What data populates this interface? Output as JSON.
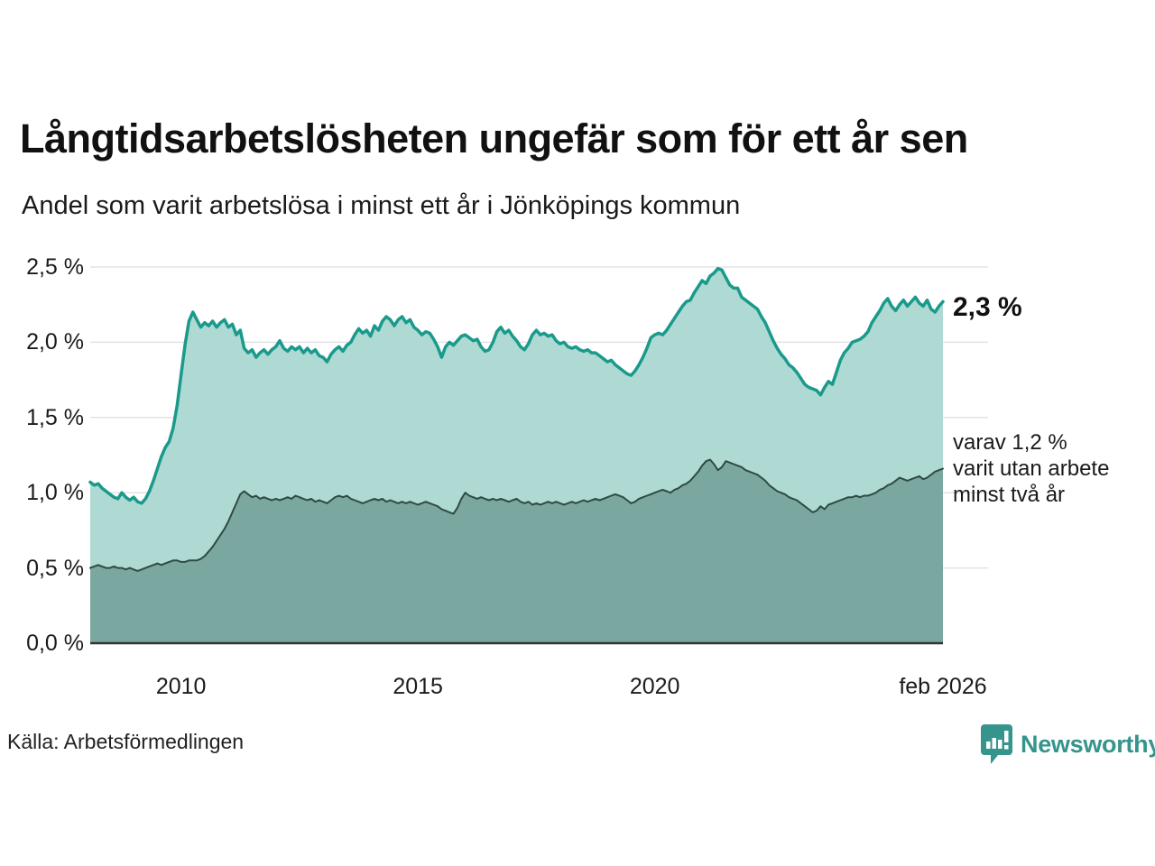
{
  "header": {
    "title": "Långtidsarbetslösheten ungefär som för ett år sen",
    "subtitle": "Andel som varit arbetslösa i minst ett år i Jönköpings kommun"
  },
  "annotations": {
    "latest_value": "2,3 %",
    "secondary_line1": "varav 1,2 %",
    "secondary_line2": "varit utan arbete",
    "secondary_line3": "minst två år"
  },
  "footer": {
    "source": "Källa: Arbetsförmedlingen",
    "brand": "Newsworthy"
  },
  "colors": {
    "accent_teal": "#1a9a8c",
    "light_fill": "#aedad3",
    "dark_fill": "#7aa8a1",
    "dark_line": "#2f4a44",
    "gridline": "#e3e3e7",
    "baseline": "#333333",
    "brand_teal": "#35948b",
    "text": "#111111"
  },
  "chart_data": {
    "type": "area",
    "title": "Långtidsarbetslösheten ungefär som för ett år sen",
    "subtitle": "Andel som varit arbetslösa i minst ett år i Jönköpings kommun",
    "unit": "%",
    "x_start": "2008-02",
    "x_end": "2026-02",
    "x_interval": "monthly",
    "ylim": [
      0,
      2.5
    ],
    "grid": true,
    "legend_position": "none",
    "yticks": [
      {
        "value": 0.0,
        "label": "0,0 %"
      },
      {
        "value": 0.5,
        "label": "0,5 %"
      },
      {
        "value": 1.0,
        "label": "1,0 %"
      },
      {
        "value": 1.5,
        "label": "1,5 %"
      },
      {
        "value": 2.0,
        "label": "2,0 %"
      },
      {
        "value": 2.5,
        "label": "2,5 %"
      }
    ],
    "xticks": [
      {
        "index": 23,
        "label": "2010"
      },
      {
        "index": 83,
        "label": "2015"
      },
      {
        "index": 143,
        "label": "2020"
      },
      {
        "index": 216,
        "label": "feb 2026"
      }
    ],
    "series": [
      {
        "name": "Andel arbetslösa minst ett år",
        "latest_value": 2.3,
        "line_color": "#1a9a8c",
        "fill_color": "#aedad3",
        "line_width": 3.5,
        "values": [
          1.07,
          1.05,
          1.06,
          1.03,
          1.01,
          0.99,
          0.97,
          0.96,
          1.0,
          0.97,
          0.95,
          0.97,
          0.94,
          0.93,
          0.96,
          1.01,
          1.08,
          1.16,
          1.24,
          1.3,
          1.34,
          1.43,
          1.58,
          1.78,
          1.98,
          2.14,
          2.2,
          2.15,
          2.1,
          2.13,
          2.11,
          2.14,
          2.1,
          2.13,
          2.15,
          2.1,
          2.12,
          2.05,
          2.08,
          1.96,
          1.93,
          1.95,
          1.9,
          1.93,
          1.95,
          1.92,
          1.95,
          1.97,
          2.01,
          1.96,
          1.94,
          1.97,
          1.95,
          1.97,
          1.93,
          1.96,
          1.93,
          1.95,
          1.91,
          1.9,
          1.87,
          1.92,
          1.95,
          1.97,
          1.94,
          1.98,
          2.0,
          2.05,
          2.09,
          2.06,
          2.08,
          2.04,
          2.11,
          2.08,
          2.14,
          2.17,
          2.15,
          2.11,
          2.15,
          2.17,
          2.13,
          2.15,
          2.1,
          2.08,
          2.05,
          2.07,
          2.06,
          2.02,
          1.97,
          1.9,
          1.97,
          2.0,
          1.98,
          2.01,
          2.04,
          2.05,
          2.03,
          2.01,
          2.02,
          1.97,
          1.94,
          1.95,
          2.0,
          2.07,
          2.1,
          2.06,
          2.08,
          2.04,
          2.01,
          1.97,
          1.95,
          1.99,
          2.05,
          2.08,
          2.05,
          2.06,
          2.04,
          2.05,
          2.01,
          1.99,
          2.0,
          1.97,
          1.96,
          1.97,
          1.95,
          1.94,
          1.95,
          1.93,
          1.93,
          1.91,
          1.89,
          1.87,
          1.88,
          1.85,
          1.83,
          1.81,
          1.79,
          1.78,
          1.81,
          1.85,
          1.9,
          1.96,
          2.03,
          2.05,
          2.06,
          2.05,
          2.08,
          2.12,
          2.16,
          2.2,
          2.24,
          2.27,
          2.28,
          2.33,
          2.37,
          2.41,
          2.39,
          2.44,
          2.46,
          2.49,
          2.48,
          2.43,
          2.38,
          2.36,
          2.36,
          2.3,
          2.28,
          2.26,
          2.24,
          2.22,
          2.17,
          2.13,
          2.07,
          2.01,
          1.96,
          1.92,
          1.89,
          1.85,
          1.83,
          1.8,
          1.76,
          1.72,
          1.7,
          1.69,
          1.68,
          1.65,
          1.7,
          1.74,
          1.72,
          1.8,
          1.88,
          1.93,
          1.96,
          2.0,
          2.01,
          2.02,
          2.04,
          2.07,
          2.13,
          2.17,
          2.21,
          2.26,
          2.29,
          2.24,
          2.21,
          2.25,
          2.28,
          2.24,
          2.27,
          2.3,
          2.26,
          2.24,
          2.28,
          2.22,
          2.2,
          2.24,
          2.27
        ]
      },
      {
        "name": "varav utan arbete minst två år",
        "latest_value": 1.2,
        "line_color": "#2f4a44",
        "fill_color": "#7aa8a1",
        "line_width": 2,
        "values": [
          0.5,
          0.51,
          0.52,
          0.51,
          0.5,
          0.5,
          0.51,
          0.5,
          0.5,
          0.49,
          0.5,
          0.49,
          0.48,
          0.49,
          0.5,
          0.51,
          0.52,
          0.53,
          0.52,
          0.53,
          0.54,
          0.55,
          0.55,
          0.54,
          0.54,
          0.55,
          0.55,
          0.55,
          0.56,
          0.58,
          0.61,
          0.64,
          0.68,
          0.72,
          0.76,
          0.81,
          0.87,
          0.93,
          0.99,
          1.01,
          0.99,
          0.97,
          0.98,
          0.96,
          0.97,
          0.96,
          0.95,
          0.96,
          0.95,
          0.96,
          0.97,
          0.96,
          0.98,
          0.97,
          0.96,
          0.95,
          0.96,
          0.94,
          0.95,
          0.94,
          0.93,
          0.95,
          0.97,
          0.98,
          0.97,
          0.98,
          0.96,
          0.95,
          0.94,
          0.93,
          0.94,
          0.95,
          0.96,
          0.95,
          0.96,
          0.94,
          0.95,
          0.94,
          0.93,
          0.94,
          0.93,
          0.94,
          0.93,
          0.92,
          0.93,
          0.94,
          0.93,
          0.92,
          0.91,
          0.89,
          0.88,
          0.87,
          0.86,
          0.9,
          0.96,
          1.0,
          0.98,
          0.97,
          0.96,
          0.97,
          0.96,
          0.95,
          0.96,
          0.95,
          0.96,
          0.95,
          0.94,
          0.95,
          0.96,
          0.94,
          0.93,
          0.94,
          0.92,
          0.93,
          0.92,
          0.93,
          0.94,
          0.93,
          0.94,
          0.93,
          0.92,
          0.93,
          0.94,
          0.93,
          0.94,
          0.95,
          0.94,
          0.95,
          0.96,
          0.95,
          0.96,
          0.97,
          0.98,
          0.99,
          0.98,
          0.97,
          0.95,
          0.93,
          0.94,
          0.96,
          0.97,
          0.98,
          0.99,
          1.0,
          1.01,
          1.02,
          1.01,
          1.0,
          1.02,
          1.03,
          1.05,
          1.06,
          1.08,
          1.11,
          1.14,
          1.18,
          1.21,
          1.22,
          1.19,
          1.15,
          1.17,
          1.21,
          1.2,
          1.19,
          1.18,
          1.17,
          1.15,
          1.14,
          1.13,
          1.12,
          1.1,
          1.08,
          1.05,
          1.03,
          1.01,
          1.0,
          0.99,
          0.97,
          0.96,
          0.95,
          0.93,
          0.91,
          0.89,
          0.87,
          0.88,
          0.91,
          0.89,
          0.92,
          0.93,
          0.94,
          0.95,
          0.96,
          0.97,
          0.97,
          0.98,
          0.97,
          0.98,
          0.98,
          0.99,
          1.0,
          1.02,
          1.03,
          1.05,
          1.06,
          1.08,
          1.1,
          1.09,
          1.08,
          1.09,
          1.1,
          1.11,
          1.09,
          1.1,
          1.12,
          1.14,
          1.15,
          1.16
        ]
      }
    ]
  }
}
